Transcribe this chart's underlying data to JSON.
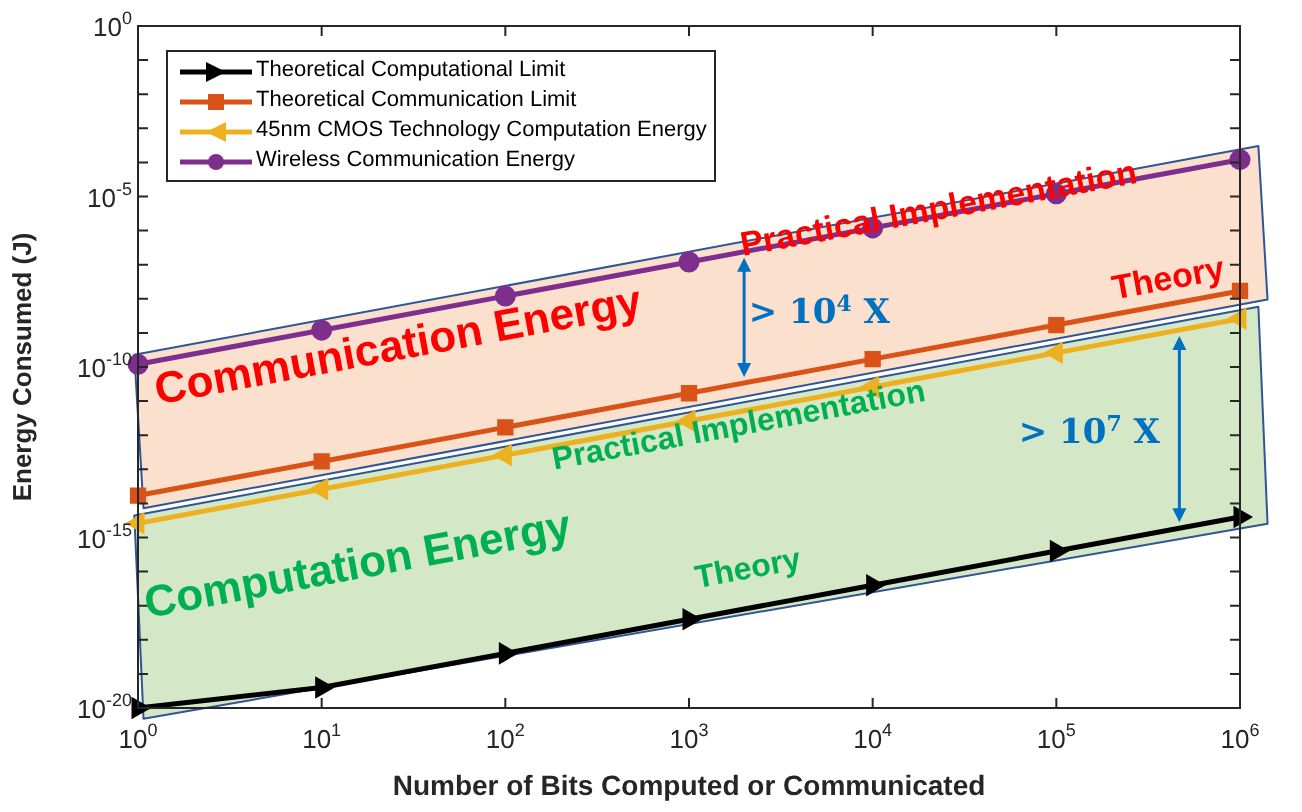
{
  "chart_data": {
    "type": "line",
    "xlabel": "Number of Bits Computed or Communicated",
    "ylabel": "Energy Consumed (J)",
    "x": [
      1,
      10,
      100,
      1000,
      10000,
      100000,
      1000000
    ],
    "series": [
      {
        "name": "Theoretical Computational Limit",
        "color": "#000000",
        "marker": "triangle",
        "values": [
          1e-20,
          4e-20,
          4e-19,
          4e-18,
          4e-17,
          4e-16,
          4e-15
        ]
      },
      {
        "name": "Theoretical Communication Limit",
        "color": "#d95319",
        "marker": "square",
        "values": [
          1.7e-14,
          1.7e-13,
          1.7e-12,
          1.7e-11,
          1.7e-10,
          1.7e-09,
          1.7e-08
        ]
      },
      {
        "name": "45nm CMOS Technology Computation Energy",
        "color": "#edb120",
        "marker": "triangle",
        "values": [
          2.6e-15,
          2.6e-14,
          2.6e-13,
          2.6e-12,
          2.6e-11,
          2.6e-10,
          2.6e-09
        ]
      },
      {
        "name": "Wireless Communication Energy",
        "color": "#7e2f8e",
        "marker": "circle",
        "values": [
          1.2e-10,
          1.2e-09,
          1.2e-08,
          1.2e-07,
          1.2e-06,
          1.2e-05,
          0.00012
        ]
      }
    ],
    "log": "xy",
    "grid": false,
    "legend": "top left",
    "xlim": [
      1,
      1000000
    ],
    "xticks": [
      {
        "value": 1,
        "label": "10$^{0}$"
      },
      {
        "value": 10,
        "label": "10$^{1}$"
      },
      {
        "value": 100,
        "label": "10$^{2}$"
      },
      {
        "value": 1000,
        "label": "10$^{3}$"
      },
      {
        "value": 10000,
        "label": "10$^{4}$"
      },
      {
        "value": 100000,
        "label": "10$^{5}$"
      },
      {
        "value": 1000000,
        "label": "10$^{6}$"
      }
    ],
    "ylim": [
      1e-20,
      1
    ],
    "yticks": [
      {
        "value": 1e-20,
        "label": "10$^{-20}$"
      },
      {
        "value": 1e-19,
        "label": null
      },
      {
        "value": 1e-18,
        "label": null
      },
      {
        "value": 1e-17,
        "label": null
      },
      {
        "value": 1e-16,
        "label": null
      },
      {
        "value": 1e-15,
        "label": "10$^{-15}$"
      },
      {
        "value": 1e-14,
        "label": null
      },
      {
        "value": 1e-13,
        "label": null
      },
      {
        "value": 1e-12,
        "label": null
      },
      {
        "value": 1e-11,
        "label": null
      },
      {
        "value": 1e-10,
        "label": "10$^{-10}$"
      },
      {
        "value": 1e-09,
        "label": null
      },
      {
        "value": 1e-08,
        "label": null
      },
      {
        "value": 1e-07,
        "label": null
      },
      {
        "value": 1e-06,
        "label": null
      },
      {
        "value": 1e-05,
        "label": "10$^{-5}$"
      },
      {
        "value": 0.0001,
        "label": null
      },
      {
        "value": 0.001,
        "label": null
      },
      {
        "value": 0.01,
        "label": null
      },
      {
        "value": 0.1,
        "label": null
      },
      {
        "value": 1,
        "label": "10$^{0}$"
      }
    ],
    "annotations": [
      "Communication Energy",
      "Practical Implementation",
      "Theory",
      "> 10$^{4}$ X",
      "Practical Implementation",
      "> 10$^{7}$ X",
      "Computation Energy",
      "Theory"
    ]
  }
}
